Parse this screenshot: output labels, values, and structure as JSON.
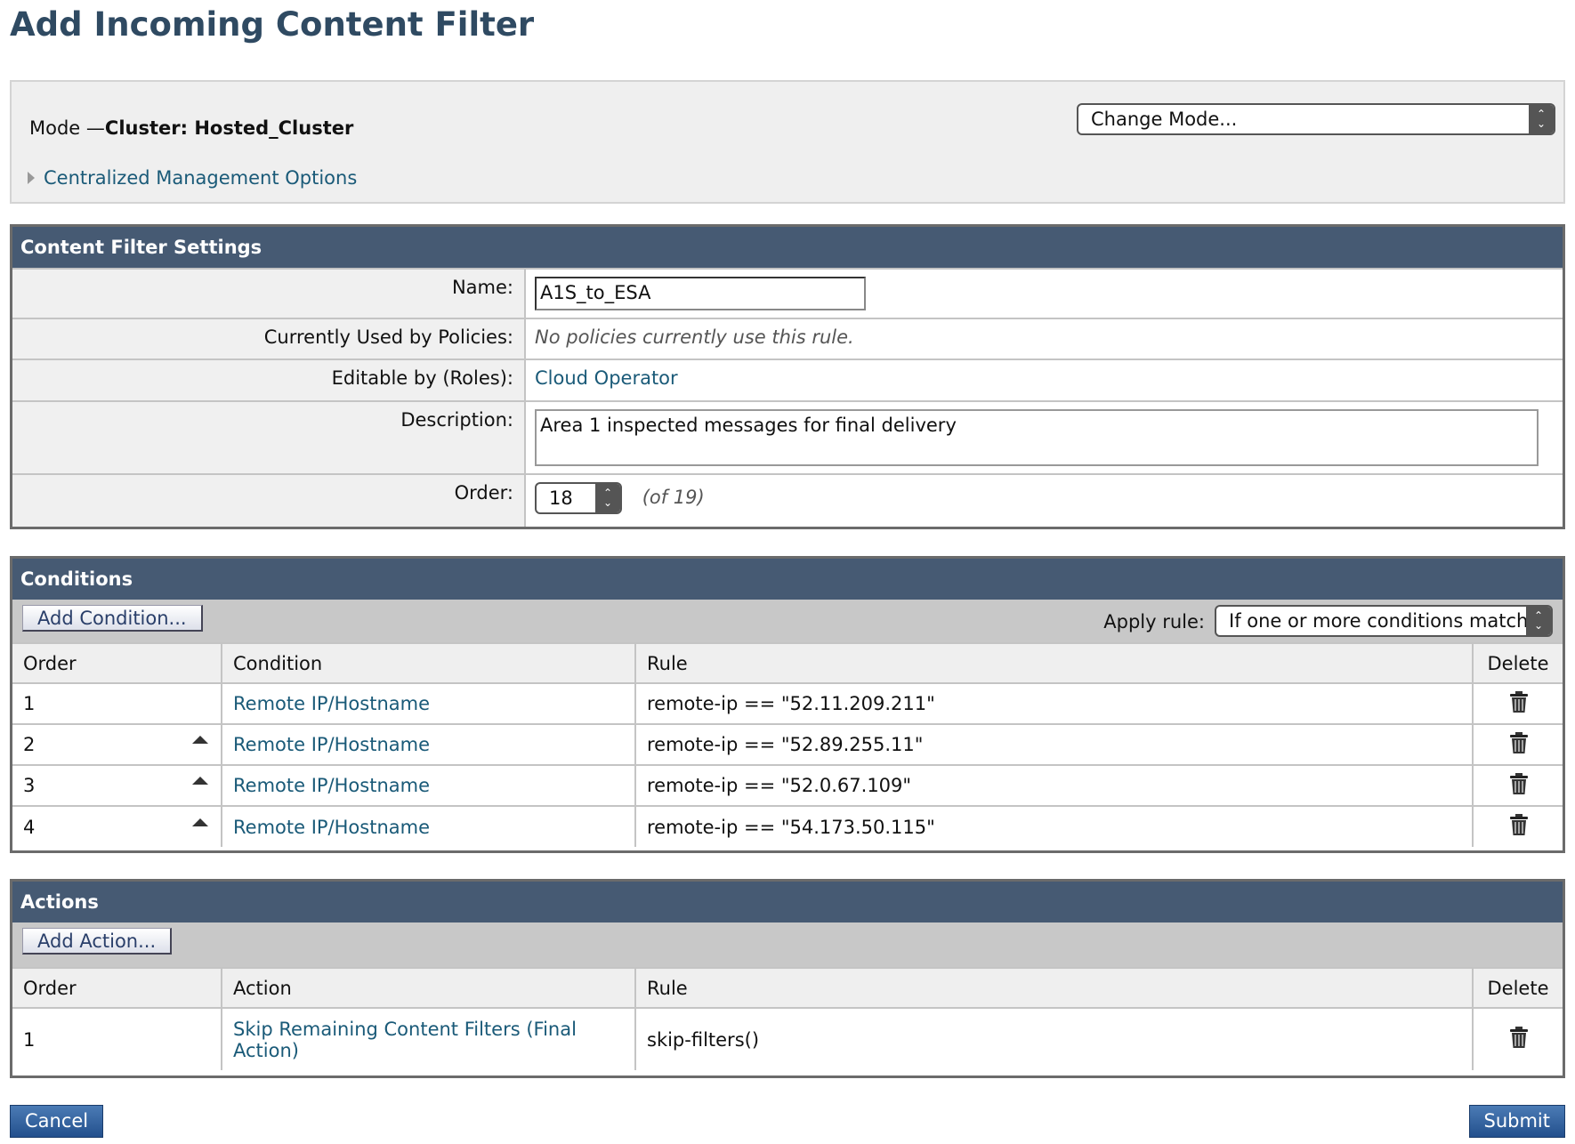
{
  "page_title": "Add Incoming Content Filter",
  "mode": {
    "prefix": "Mode —",
    "value": "Cluster: Hosted_Cluster",
    "options_link": "Centralized Management Options",
    "change_mode": "Change Mode..."
  },
  "settings": {
    "header": "Content Filter Settings",
    "name_label": "Name:",
    "name_value": "A1S_to_ESA",
    "used_label": "Currently Used by Policies:",
    "used_value": "No policies currently use this rule.",
    "roles_label": "Editable by (Roles):",
    "roles_value": "Cloud Operator",
    "desc_label": "Description:",
    "desc_value": "Area 1 inspected messages for final delivery",
    "order_label": "Order:",
    "order_value": "18",
    "order_of": "(of 19)"
  },
  "conditions": {
    "header": "Conditions",
    "add_button": "Add Condition...",
    "apply_label": "Apply rule:",
    "apply_value": "If one or more conditions match",
    "columns": [
      "Order",
      "Condition",
      "Rule",
      "Delete"
    ],
    "rows": [
      {
        "order": "1",
        "condition": "Remote IP/Hostname",
        "rule": "remote-ip == \"52.11.209.211\""
      },
      {
        "order": "2",
        "condition": "Remote IP/Hostname",
        "rule": "remote-ip == \"52.89.255.11\""
      },
      {
        "order": "3",
        "condition": "Remote IP/Hostname",
        "rule": "remote-ip == \"52.0.67.109\""
      },
      {
        "order": "4",
        "condition": "Remote IP/Hostname",
        "rule": "remote-ip == \"54.173.50.115\""
      }
    ]
  },
  "actions": {
    "header": "Actions",
    "add_button": "Add Action...",
    "columns": [
      "Order",
      "Action",
      "Rule",
      "Delete"
    ],
    "rows": [
      {
        "order": "1",
        "action": "Skip Remaining Content Filters (Final Action)",
        "rule": "skip-filters()"
      }
    ]
  },
  "footer": {
    "cancel": "Cancel",
    "submit": "Submit"
  }
}
